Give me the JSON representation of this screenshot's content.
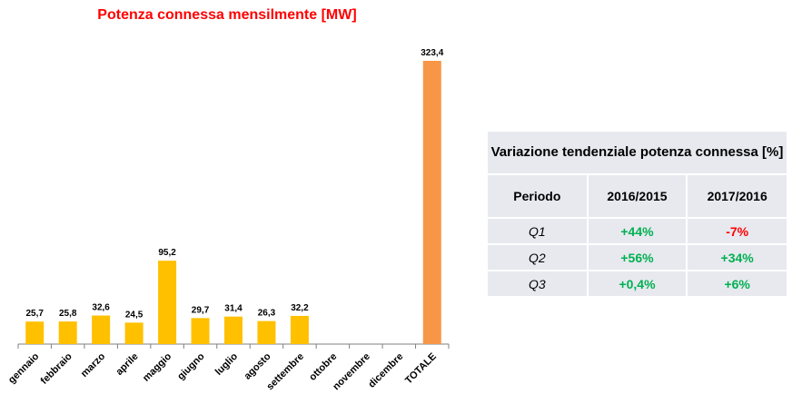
{
  "chart_data": {
    "type": "bar",
    "title": "Potenza connessa mensilmente [MW]",
    "categories": [
      "gennaio",
      "febbraio",
      "marzo",
      "aprile",
      "maggio",
      "giugno",
      "luglio",
      "agosto",
      "settembre",
      "ottobre",
      "novembre",
      "dicembre",
      "TOTALE"
    ],
    "values": [
      25.7,
      25.8,
      32.6,
      24.5,
      95.2,
      29.7,
      31.4,
      26.3,
      32.2,
      null,
      null,
      null,
      323.4
    ],
    "value_labels": [
      "25,7",
      "25,8",
      "32,6",
      "24,5",
      "95,2",
      "29,7",
      "31,4",
      "26,3",
      "32,2",
      "",
      "",
      "",
      "323,4"
    ],
    "ylim": [
      0,
      323.4
    ],
    "grid": false,
    "colors": {
      "bar": "#ffc000",
      "total": "#f79646",
      "axis": "#808080"
    }
  },
  "table": {
    "title": "Variazione tendenziale potenza connessa [%]",
    "headers": [
      "Periodo",
      "2016/2015",
      "2017/2016"
    ],
    "rows": [
      {
        "period": "Q1",
        "v1": "+44%",
        "v2": "-7%"
      },
      {
        "period": "Q2",
        "v1": "+56%",
        "v2": "+34%"
      },
      {
        "period": "Q3",
        "v1": "+0,4%",
        "v2": "+6%"
      }
    ],
    "colors": {
      "title": "#000000",
      "positive": "#00b050",
      "negative": "#ff0000",
      "chart_title": "#ff0000"
    }
  }
}
